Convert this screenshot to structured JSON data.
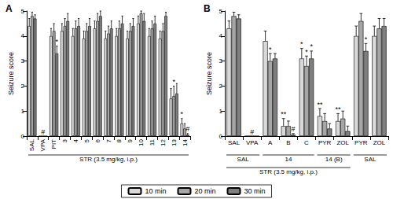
{
  "chart_data": [
    {
      "type": "bar",
      "title": "A",
      "y_label": "Seizure score",
      "categories": [
        "SAL",
        "VPA",
        "PIT",
        "3",
        "4",
        "5",
        "6",
        "7",
        "8",
        "9",
        "10",
        "11",
        "12",
        "13",
        "14"
      ],
      "ylim": [
        0,
        5
      ],
      "yticks": [
        0,
        1,
        2,
        3,
        4,
        5
      ],
      "legend": "bottom",
      "groups": [
        [
          {
            "label": "STR (3.5 mg/kg, i.p.)",
            "from": 0,
            "to": 14
          }
        ]
      ],
      "series": [
        {
          "name": "10 min",
          "color": "#d9d9d9",
          "values": [
            4.4,
            0,
            4.0,
            4.2,
            4.0,
            3.9,
            4.3,
            3.9,
            4.0,
            3.9,
            4.5,
            4.0,
            3.9,
            1.5,
            0.5
          ],
          "errors": [
            0.3,
            null,
            0.3,
            0.3,
            0.3,
            0.3,
            0.3,
            0.3,
            0.3,
            0.3,
            0.3,
            0.3,
            0.3,
            0.4,
            0.2
          ],
          "marks": [
            null,
            null,
            null,
            null,
            null,
            null,
            null,
            null,
            null,
            null,
            null,
            null,
            null,
            null,
            "*"
          ]
        },
        {
          "name": "20 min",
          "color": "#a6a6a6",
          "values": [
            4.8,
            0,
            4.2,
            4.4,
            4.3,
            4.2,
            4.6,
            4.1,
            4.3,
            4.2,
            4.9,
            4.3,
            4.2,
            1.6,
            0.3
          ],
          "errors": [
            0.15,
            null,
            0.3,
            0.3,
            0.3,
            0.3,
            0.3,
            0.3,
            0.3,
            0.3,
            0.1,
            0.3,
            0.3,
            0.4,
            0.2
          ],
          "marks": [
            null,
            "#",
            null,
            null,
            null,
            null,
            null,
            null,
            null,
            null,
            null,
            null,
            null,
            "*",
            null
          ]
        },
        {
          "name": "30 min",
          "color": "#7f7f7f",
          "values": [
            4.7,
            0,
            3.3,
            4.6,
            4.4,
            4.4,
            4.8,
            4.3,
            4.5,
            4.4,
            4.6,
            4.5,
            4.8,
            1.7,
            0.05
          ],
          "errors": [
            0.15,
            null,
            0.3,
            0.3,
            0.3,
            0.3,
            0.2,
            0.3,
            0.3,
            0.3,
            0.3,
            0.3,
            0.15,
            0.4,
            0.05
          ],
          "marks": [
            null,
            null,
            "*",
            null,
            null,
            null,
            null,
            null,
            null,
            null,
            null,
            null,
            null,
            null,
            "#"
          ]
        }
      ]
    },
    {
      "type": "bar",
      "title": "B",
      "y_label": "Seizure score",
      "categories": [
        "SAL",
        "VPA",
        "A",
        "B",
        "C",
        "PYR",
        "ZOL",
        "PYR",
        "ZOL"
      ],
      "ylim": [
        0,
        5
      ],
      "yticks": [
        0,
        1,
        2,
        3,
        4,
        5
      ],
      "legend": "bottom",
      "groups": [
        [
          {
            "label": "SAL",
            "from": 0,
            "to": 1
          },
          {
            "label": "14",
            "from": 2,
            "to": 4
          },
          {
            "label": "14 (B)",
            "from": 5,
            "to": 6
          },
          {
            "label": "SAL",
            "from": 7,
            "to": 8
          }
        ],
        [
          {
            "label": "STR (3.5 mg/kg, i.p.)",
            "from": 0,
            "to": 6
          }
        ]
      ],
      "series": [
        {
          "name": "10 min",
          "color": "#d9d9d9",
          "values": [
            4.3,
            0,
            3.8,
            0.4,
            3.1,
            0.8,
            0.6,
            4.0,
            4.0
          ],
          "errors": [
            0.3,
            null,
            0.4,
            0.3,
            0.4,
            0.3,
            0.3,
            0.4,
            0.4
          ],
          "marks": [
            null,
            null,
            null,
            "**",
            "*",
            "**",
            "**",
            null,
            null
          ]
        },
        {
          "name": "20 min",
          "color": "#a6a6a6",
          "values": [
            4.8,
            0,
            3.0,
            0.4,
            2.8,
            0.6,
            0.7,
            4.6,
            4.3
          ],
          "errors": [
            0.15,
            null,
            0.3,
            0.2,
            0.4,
            0.3,
            0.3,
            0.3,
            0.4
          ],
          "marks": [
            null,
            "#",
            "*",
            null,
            "*",
            null,
            null,
            null,
            null
          ]
        },
        {
          "name": "30 min",
          "color": "#7f7f7f",
          "values": [
            4.7,
            0,
            3.1,
            0.05,
            3.1,
            0.3,
            0.2,
            3.4,
            4.4
          ],
          "errors": [
            0.15,
            null,
            0.2,
            0.05,
            0.3,
            0.2,
            0.2,
            0.3,
            0.3
          ],
          "marks": [
            null,
            null,
            null,
            "#",
            "*",
            null,
            null,
            "*",
            null
          ]
        }
      ]
    }
  ]
}
